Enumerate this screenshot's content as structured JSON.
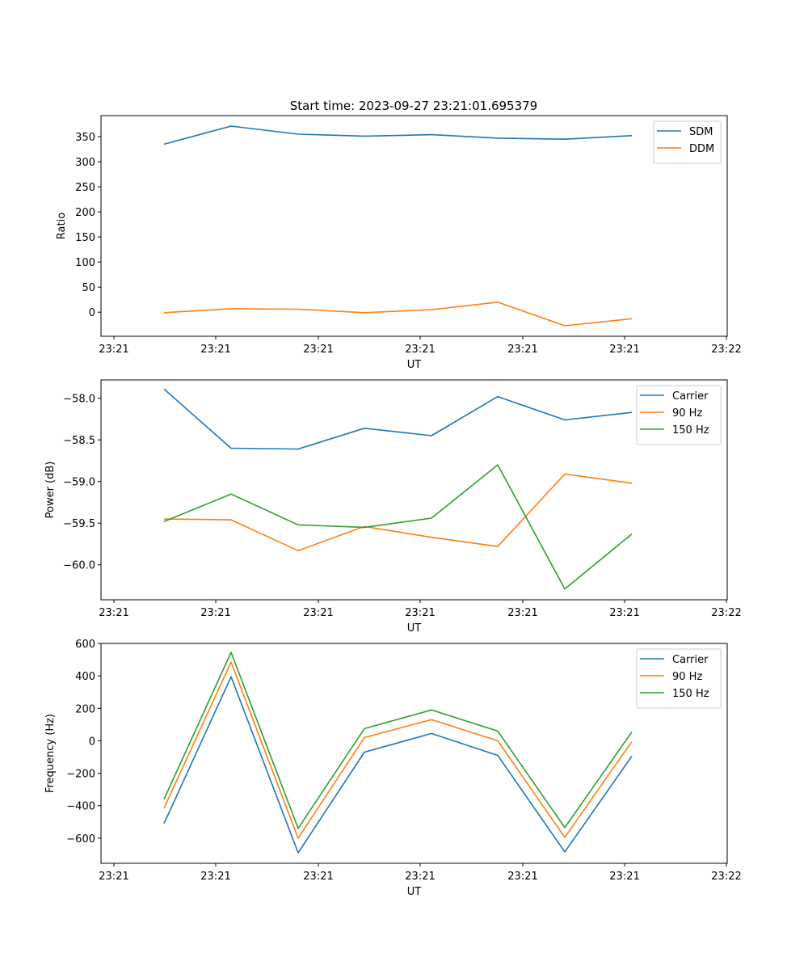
{
  "figure": {
    "title": "Start time: 2023-09-27 23:21:01.695379"
  },
  "chart_data": [
    {
      "type": "line",
      "title": "Start time: 2023-09-27 23:21:01.695379",
      "xlabel": "UT",
      "ylabel": "Ratio",
      "x_tick_labels": [
        "23:21",
        "23:21",
        "23:21",
        "23:21",
        "23:21",
        "23:21",
        "23:22"
      ],
      "x": [
        1,
        2,
        3,
        4,
        5,
        6,
        7,
        8
      ],
      "xlim": [
        -0.25,
        8.9
      ],
      "ylim": [
        -48,
        392
      ],
      "yticks": [
        0,
        50,
        100,
        150,
        200,
        250,
        300,
        350
      ],
      "grid": false,
      "legend_position": "top-right",
      "series": [
        {
          "name": "SDM",
          "color": "#1f77b4",
          "values": [
            335,
            371,
            355,
            351,
            354,
            347,
            345,
            352
          ]
        },
        {
          "name": "DDM",
          "color": "#ff7f0e",
          "values": [
            -1,
            7,
            6,
            -1,
            5,
            20,
            -27,
            -13
          ]
        }
      ]
    },
    {
      "type": "line",
      "title": "",
      "xlabel": "UT",
      "ylabel": "Power (dB)",
      "x_tick_labels": [
        "23:21",
        "23:21",
        "23:21",
        "23:21",
        "23:21",
        "23:21",
        "23:22"
      ],
      "x": [
        1,
        2,
        3,
        4,
        5,
        6,
        7,
        8
      ],
      "xlim": [
        -0.25,
        8.9
      ],
      "ylim": [
        -60.42,
        -57.78
      ],
      "yticks": [
        -60.0,
        -59.5,
        -59.0,
        -58.5,
        -58.0
      ],
      "ytick_labels": [
        "−60.0",
        "−59.5",
        "−59.0",
        "−58.5",
        "−58.0"
      ],
      "grid": false,
      "legend_position": "top-right",
      "series": [
        {
          "name": "Carrier",
          "color": "#1f77b4",
          "values": [
            -57.89,
            -58.6,
            -58.61,
            -58.36,
            -58.45,
            -57.98,
            -58.26,
            -58.17
          ]
        },
        {
          "name": "90 Hz",
          "color": "#ff7f0e",
          "values": [
            -59.45,
            -59.46,
            -59.83,
            -59.54,
            -59.67,
            -59.78,
            -58.91,
            -59.02
          ]
        },
        {
          "name": "150 Hz",
          "color": "#2ca02c",
          "values": [
            -59.48,
            -59.15,
            -59.52,
            -59.55,
            -59.44,
            -58.8,
            -60.29,
            -59.63
          ]
        }
      ]
    },
    {
      "type": "line",
      "title": "",
      "xlabel": "UT",
      "ylabel": "Frequency (Hz)",
      "x_tick_labels": [
        "23:21",
        "23:21",
        "23:21",
        "23:21",
        "23:21",
        "23:21",
        "23:22"
      ],
      "x": [
        1,
        2,
        3,
        4,
        5,
        6,
        7,
        8
      ],
      "xlim": [
        -0.25,
        8.9
      ],
      "ylim": [
        -755,
        600
      ],
      "yticks": [
        -600,
        -400,
        -200,
        0,
        200,
        400,
        600
      ],
      "ytick_labels": [
        "−600",
        "−400",
        "−200",
        "0",
        "200",
        "400",
        "600"
      ],
      "grid": false,
      "legend_position": "top-right",
      "series": [
        {
          "name": "Carrier",
          "color": "#1f77b4",
          "values": [
            -510,
            395,
            -690,
            -70,
            45,
            -90,
            -685,
            -95
          ]
        },
        {
          "name": "90 Hz",
          "color": "#ff7f0e",
          "values": [
            -415,
            485,
            -600,
            20,
            130,
            0,
            -595,
            -5
          ]
        },
        {
          "name": "150 Hz",
          "color": "#2ca02c",
          "values": [
            -360,
            545,
            -540,
            75,
            190,
            60,
            -535,
            55
          ]
        }
      ]
    }
  ]
}
